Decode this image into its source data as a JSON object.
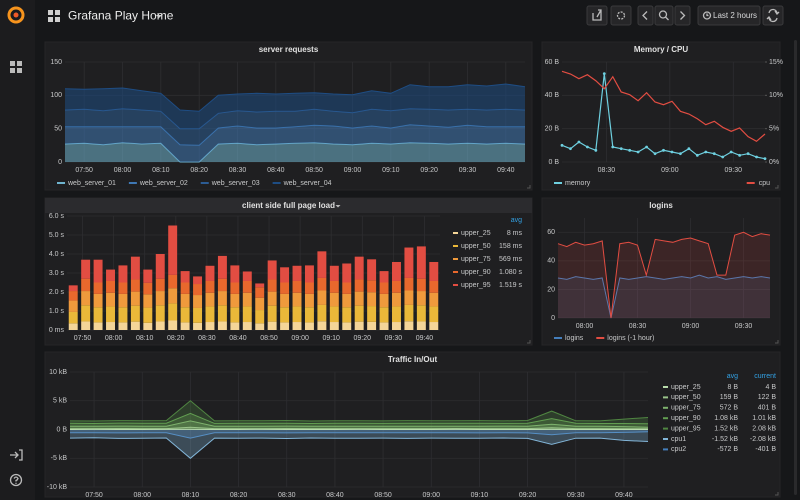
{
  "header": {
    "title": "Grafana Play Home",
    "time_range": "Last 2 hours"
  },
  "panels": [
    {
      "title": "server requests",
      "type": "stacked_area",
      "legend": "bottom",
      "xlim": [
        465,
        585
      ],
      "xticks": [
        {
          "value": 470,
          "label": "07:50"
        },
        {
          "value": 480,
          "label": "08:00"
        },
        {
          "value": 490,
          "label": "08:10"
        },
        {
          "value": 500,
          "label": "08:20"
        },
        {
          "value": 510,
          "label": "08:30"
        },
        {
          "value": 520,
          "label": "08:40"
        },
        {
          "value": 530,
          "label": "08:50"
        },
        {
          "value": 540,
          "label": "09:00"
        },
        {
          "value": 550,
          "label": "09:10"
        },
        {
          "value": 560,
          "label": "09:20"
        },
        {
          "value": 570,
          "label": "09:30"
        },
        {
          "value": 580,
          "label": "09:40"
        }
      ],
      "ylim": [
        0,
        150
      ],
      "yticks": [
        0,
        50,
        100,
        150
      ],
      "x": [
        465,
        470,
        475,
        480,
        485,
        490,
        495,
        500,
        505,
        510,
        515,
        520,
        525,
        530,
        535,
        540,
        545,
        550,
        555,
        560,
        565,
        570,
        575,
        580,
        585
      ],
      "series": [
        {
          "name": "web_server_01",
          "color": "#6fb4cf",
          "values": [
            27,
            28,
            26,
            29,
            27,
            28,
            0,
            0,
            27,
            28,
            26,
            27,
            28,
            29,
            27,
            26,
            28,
            27,
            29,
            28,
            27,
            28,
            27,
            28,
            27
          ]
        },
        {
          "name": "web_server_02",
          "color": "#3f78b4",
          "values": [
            26,
            25,
            27,
            24,
            26,
            25,
            26,
            25,
            24,
            26,
            25,
            24,
            25,
            26,
            27,
            25,
            26,
            24,
            27,
            26,
            25,
            27,
            26,
            25,
            26
          ]
        },
        {
          "name": "web_server_03",
          "color": "#2c5c94",
          "values": [
            25,
            26,
            24,
            27,
            25,
            23,
            24,
            25,
            22,
            23,
            24,
            25,
            23,
            24,
            22,
            23,
            25,
            26,
            24,
            25,
            26,
            24,
            25,
            26,
            25
          ]
        },
        {
          "name": "web_server_04",
          "color": "#1e4d84",
          "values": [
            32,
            30,
            33,
            31,
            29,
            27,
            28,
            26,
            27,
            25,
            28,
            26,
            27,
            25,
            26,
            27,
            28,
            26,
            36,
            34,
            35,
            37,
            36,
            38,
            35
          ]
        }
      ]
    },
    {
      "title": "Memory / CPU",
      "type": "dual_line",
      "legend": "bottom",
      "xlim": [
        489,
        585
      ],
      "xticks": [
        {
          "value": 510,
          "label": "08:30"
        },
        {
          "value": 540,
          "label": "09:00"
        },
        {
          "value": 570,
          "label": "09:30"
        }
      ],
      "ylim": [
        0,
        60
      ],
      "yticks": [
        {
          "value": 0,
          "label": "0 B"
        },
        {
          "value": 20,
          "label": "20 B"
        },
        {
          "value": 40,
          "label": "40 B"
        },
        {
          "value": 60,
          "label": "60 B"
        }
      ],
      "y2lim": [
        0,
        15
      ],
      "y2ticks": [
        {
          "value": 0,
          "label": "0%"
        },
        {
          "value": 5,
          "label": "5%"
        },
        {
          "value": 10,
          "label": "10%"
        },
        {
          "value": 15,
          "label": "15%"
        }
      ],
      "x": [
        489,
        493,
        497,
        501,
        505,
        509,
        513,
        517,
        521,
        525,
        529,
        533,
        537,
        541,
        545,
        549,
        553,
        557,
        561,
        565,
        569,
        573,
        577,
        581,
        585
      ],
      "series": [
        {
          "name": "memory",
          "color": "#6ed0e0",
          "values": [
            10,
            8,
            12,
            9,
            7,
            53,
            9,
            8,
            7,
            6,
            9,
            5,
            7,
            6,
            5,
            8,
            4,
            6,
            5,
            3,
            6,
            4,
            5,
            3,
            2
          ]
        },
        {
          "name": "cpu",
          "color": "#e24d42",
          "axis": "y2",
          "values": [
            13.6,
            13.2,
            12.5,
            13.1,
            12.2,
            11,
            12.8,
            10.5,
            10.1,
            9.2,
            10.4,
            9,
            8.6,
            9.1,
            7.6,
            7.2,
            6.5,
            5.6,
            6.1,
            5.2,
            4.6,
            5.1,
            3.8,
            3.1,
            4.2
          ]
        }
      ]
    },
    {
      "title": "client side full page load",
      "type": "stacked_bar",
      "legend": "right",
      "legend_columns": [
        "avg"
      ],
      "xlim": [
        465,
        585
      ],
      "xticks": [
        {
          "value": 470,
          "label": "07:50"
        },
        {
          "value": 480,
          "label": "08:00"
        },
        {
          "value": 490,
          "label": "08:10"
        },
        {
          "value": 500,
          "label": "08:20"
        },
        {
          "value": 510,
          "label": "08:30"
        },
        {
          "value": 520,
          "label": "08:40"
        },
        {
          "value": 530,
          "label": "08:50"
        },
        {
          "value": 540,
          "label": "09:00"
        },
        {
          "value": 550,
          "label": "09:10"
        },
        {
          "value": 560,
          "label": "09:20"
        },
        {
          "value": 570,
          "label": "09:30"
        },
        {
          "value": 580,
          "label": "09:40"
        }
      ],
      "ylim": [
        0,
        6
      ],
      "yticks": [
        {
          "value": 0,
          "label": "0 ms"
        },
        {
          "value": 1,
          "label": "1.0 s"
        },
        {
          "value": 2,
          "label": "2.0 s"
        },
        {
          "value": 3,
          "label": "3.0 s"
        },
        {
          "value": 4,
          "label": "4.0 s"
        },
        {
          "value": 5,
          "label": "5.0 s"
        },
        {
          "value": 6,
          "label": "6.0 s"
        }
      ],
      "x": [
        467,
        471,
        475,
        479,
        483,
        487,
        491,
        495,
        499,
        503,
        507,
        511,
        515,
        519,
        523,
        527,
        531,
        535,
        539,
        543,
        547,
        551,
        555,
        559,
        563,
        567,
        571,
        575,
        579,
        583
      ],
      "series": [
        {
          "name": "upper_25",
          "color": "#f4d598",
          "avg": "8 ms",
          "values": [
            0.35,
            0.45,
            0.4,
            0.42,
            0.4,
            0.44,
            0.38,
            0.45,
            0.5,
            0.4,
            0.38,
            0.42,
            0.45,
            0.4,
            0.42,
            0.35,
            0.44,
            0.4,
            0.42,
            0.4,
            0.46,
            0.42,
            0.4,
            0.44,
            0.43,
            0.4,
            0.42,
            0.46,
            0.45,
            0.42
          ]
        },
        {
          "name": "upper_50",
          "color": "#eab839",
          "avg": "158 ms",
          "values": [
            0.6,
            0.85,
            0.8,
            0.82,
            0.8,
            0.84,
            0.8,
            0.85,
            0.9,
            0.8,
            0.78,
            0.82,
            0.85,
            0.8,
            0.82,
            0.7,
            0.84,
            0.8,
            0.82,
            0.8,
            0.86,
            0.82,
            0.8,
            0.84,
            0.83,
            0.8,
            0.82,
            0.86,
            0.85,
            0.82
          ]
        },
        {
          "name": "upper_75",
          "color": "#ef9a3c",
          "avg": "569 ms",
          "values": [
            0.6,
            0.75,
            0.7,
            0.72,
            0.7,
            0.74,
            0.7,
            0.75,
            0.8,
            0.7,
            0.68,
            0.72,
            0.75,
            0.7,
            0.72,
            0.65,
            0.74,
            0.7,
            0.72,
            0.7,
            0.76,
            0.72,
            0.7,
            0.74,
            0.73,
            0.7,
            0.72,
            0.76,
            0.75,
            0.72
          ]
        },
        {
          "name": "upper_90",
          "color": "#e8682d",
          "avg": "1.080 s",
          "values": [
            0.5,
            0.65,
            0.6,
            0.62,
            0.6,
            0.64,
            0.6,
            0.65,
            0.7,
            0.6,
            0.58,
            0.62,
            0.65,
            0.6,
            0.62,
            0.55,
            0.64,
            0.6,
            0.62,
            0.6,
            0.66,
            0.62,
            0.6,
            0.64,
            0.63,
            0.6,
            0.62,
            0.66,
            0.65,
            0.62
          ]
        },
        {
          "name": "upper_95",
          "color": "#e24d42",
          "avg": "1.519 s",
          "values": [
            0.3,
            1.0,
            1.2,
            0.6,
            0.9,
            1.2,
            0.7,
            1.3,
            2.6,
            0.6,
            0.4,
            0.8,
            1.2,
            0.9,
            0.5,
            0.2,
            1.0,
            0.8,
            0.8,
            0.9,
            1.4,
            0.8,
            1.0,
            1.2,
            1.1,
            0.6,
            1.0,
            1.6,
            1.7,
            1.0
          ]
        }
      ]
    },
    {
      "title": "logins",
      "type": "line_fill",
      "legend": "bottom",
      "xlim": [
        465,
        585
      ],
      "xticks": [
        {
          "value": 480,
          "label": "08:00"
        },
        {
          "value": 510,
          "label": "08:30"
        },
        {
          "value": 540,
          "label": "09:00"
        },
        {
          "value": 570,
          "label": "09:30"
        }
      ],
      "ylim": [
        0,
        70
      ],
      "yticks": [
        0,
        20,
        40,
        60
      ],
      "x": [
        465,
        470,
        475,
        480,
        485,
        490,
        495,
        500,
        505,
        510,
        515,
        520,
        525,
        530,
        535,
        540,
        545,
        550,
        555,
        560,
        565,
        570,
        575,
        580,
        585
      ],
      "series": [
        {
          "name": "logins",
          "color": "#447ebc",
          "values": [
            28,
            27,
            29,
            28,
            27,
            28,
            0,
            28,
            27,
            28,
            29,
            28,
            27,
            28,
            29,
            28,
            30,
            28,
            29,
            27,
            28,
            29,
            28,
            29,
            28
          ]
        },
        {
          "name": "logins (-1 hour)",
          "color": "#e24d42",
          "values": [
            52,
            50,
            53,
            51,
            52,
            54,
            0,
            52,
            53,
            51,
            30,
            55,
            54,
            53,
            55,
            56,
            54,
            52,
            30,
            30,
            58,
            60,
            57,
            59,
            58
          ]
        }
      ]
    },
    {
      "title": "Traffic In/Out",
      "type": "area_zero",
      "legend": "right",
      "legend_columns": [
        "avg",
        "current"
      ],
      "xlim": [
        465,
        585
      ],
      "xticks": [
        {
          "value": 470,
          "label": "07:50"
        },
        {
          "value": 480,
          "label": "08:00"
        },
        {
          "value": 490,
          "label": "08:10"
        },
        {
          "value": 500,
          "label": "08:20"
        },
        {
          "value": 510,
          "label": "08:30"
        },
        {
          "value": 520,
          "label": "08:40"
        },
        {
          "value": 530,
          "label": "08:50"
        },
        {
          "value": 540,
          "label": "09:00"
        },
        {
          "value": 550,
          "label": "09:10"
        },
        {
          "value": 560,
          "label": "09:20"
        },
        {
          "value": 570,
          "label": "09:30"
        },
        {
          "value": 580,
          "label": "09:40"
        }
      ],
      "ylim": [
        -10000,
        10000
      ],
      "yticks": [
        {
          "value": -10000,
          "label": "-10 kB"
        },
        {
          "value": -5000,
          "label": "-5 kB"
        },
        {
          "value": 0,
          "label": "0 B"
        },
        {
          "value": 5000,
          "label": "5 kB"
        },
        {
          "value": 10000,
          "label": "10 kB"
        }
      ],
      "x": [
        465,
        470,
        475,
        480,
        485,
        490,
        495,
        500,
        505,
        510,
        515,
        520,
        525,
        530,
        535,
        540,
        545,
        550,
        555,
        560,
        565,
        570,
        575,
        580,
        585
      ],
      "series": [
        {
          "name": "upper_25",
          "color": "#b7dbab",
          "avg": "8 B",
          "current": "4 B",
          "values": [
            8,
            9,
            7,
            8,
            10,
            12,
            8,
            7,
            9,
            8,
            7,
            8,
            9,
            8,
            7,
            8,
            9,
            8,
            7,
            8,
            9,
            8,
            7,
            6,
            4
          ]
        },
        {
          "name": "upper_50",
          "color": "#9ac48a",
          "avg": "159 B",
          "current": "122 B",
          "values": [
            160,
            150,
            170,
            155,
            165,
            400,
            150,
            160,
            155,
            170,
            150,
            160,
            165,
            155,
            160,
            150,
            170,
            160,
            155,
            165,
            300,
            160,
            150,
            140,
            122
          ]
        },
        {
          "name": "upper_75",
          "color": "#7eb26d",
          "avg": "572 B",
          "current": "401 B",
          "values": [
            580,
            560,
            590,
            570,
            580,
            1500,
            560,
            570,
            580,
            590,
            560,
            570,
            580,
            560,
            575,
            570,
            580,
            560,
            590,
            570,
            900,
            580,
            560,
            500,
            401
          ]
        },
        {
          "name": "upper_90",
          "color": "#629e51",
          "avg": "1.08 kB",
          "current": "1.01 kB",
          "values": [
            1100,
            1050,
            1120,
            1080,
            1090,
            2800,
            1060,
            1080,
            1070,
            1100,
            1050,
            1090,
            1080,
            1060,
            1100,
            1070,
            1080,
            1090,
            1060,
            1100,
            1900,
            1080,
            1050,
            1040,
            1010
          ]
        },
        {
          "name": "upper_95",
          "color": "#508642",
          "avg": "1.52 kB",
          "current": "2.08 kB",
          "values": [
            1500,
            1480,
            1550,
            1520,
            1540,
            5000,
            1490,
            1520,
            1510,
            1560,
            1480,
            1530,
            1520,
            1500,
            1550,
            1510,
            1530,
            1540,
            1490,
            1560,
            3200,
            1520,
            1490,
            1800,
            2080
          ]
        },
        {
          "name": "cpu1",
          "color": "#82b5d8",
          "avg": "-1.52 kB",
          "current": "-2.08 kB",
          "values": [
            -1500,
            -1450,
            -1550,
            -1520,
            -1480,
            -5000,
            -1500,
            -1530,
            -1490,
            -1560,
            -1470,
            -1520,
            -1510,
            -1500,
            -1540,
            -1490,
            -1530,
            -1520,
            -1480,
            -1550,
            -2600,
            -1510,
            -1490,
            -1900,
            -2080
          ]
        },
        {
          "name": "cpu2",
          "color": "#447ebc",
          "avg": "-572 B",
          "current": "-401 B",
          "values": [
            -570,
            -560,
            -590,
            -575,
            -565,
            -1500,
            -570,
            -580,
            -560,
            -590,
            -565,
            -575,
            -570,
            -560,
            -580,
            -570,
            -575,
            -585,
            -560,
            -590,
            -900,
            -570,
            -565,
            -500,
            -401
          ]
        }
      ]
    }
  ]
}
